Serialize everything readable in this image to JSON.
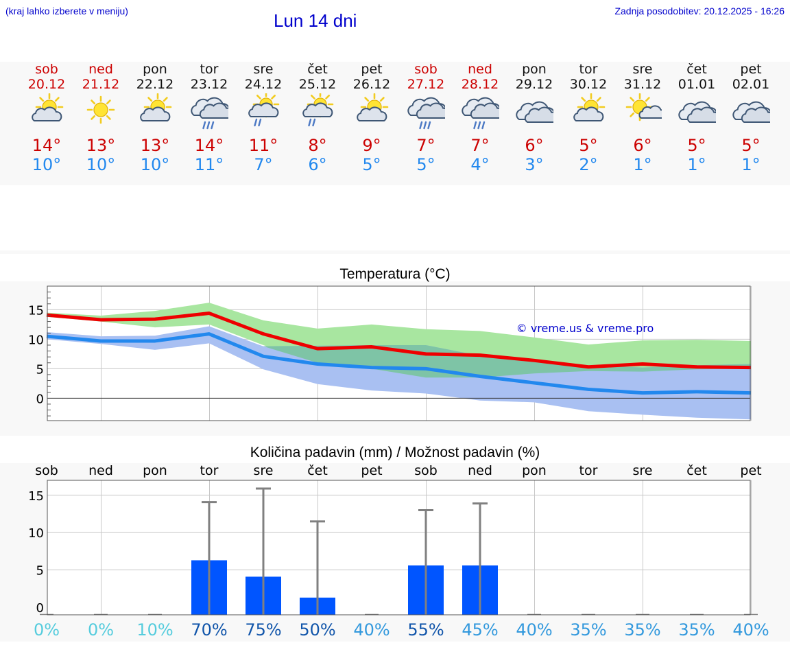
{
  "header": {
    "left_note": "(kraj lahko izberete v meniju)",
    "title": "Lun 14 dni",
    "updated": "Zadnja posodobitev: 20.12.2025 - 16:26"
  },
  "days": [
    {
      "name": "sob",
      "date": "20.12",
      "weekend": true,
      "icon": "sun-cloud",
      "max": "14°",
      "min": "10°"
    },
    {
      "name": "ned",
      "date": "21.12",
      "weekend": true,
      "icon": "sun",
      "max": "13°",
      "min": "10°"
    },
    {
      "name": "pon",
      "date": "22.12",
      "weekend": false,
      "icon": "sun-cloud",
      "max": "13°",
      "min": "10°"
    },
    {
      "name": "tor",
      "date": "23.12",
      "weekend": false,
      "icon": "cloud-rain",
      "max": "14°",
      "min": "11°"
    },
    {
      "name": "sre",
      "date": "24.12",
      "weekend": false,
      "icon": "sun-rain",
      "max": "11°",
      "min": "7°"
    },
    {
      "name": "čet",
      "date": "25.12",
      "weekend": false,
      "icon": "sun-rain",
      "max": "8°",
      "min": "6°"
    },
    {
      "name": "pet",
      "date": "26.12",
      "weekend": false,
      "icon": "sun-cloud",
      "max": "9°",
      "min": "5°"
    },
    {
      "name": "sob",
      "date": "27.12",
      "weekend": true,
      "icon": "cloud-rain",
      "max": "7°",
      "min": "5°"
    },
    {
      "name": "ned",
      "date": "28.12",
      "weekend": true,
      "icon": "cloud-rain",
      "max": "7°",
      "min": "4°"
    },
    {
      "name": "pon",
      "date": "29.12",
      "weekend": false,
      "icon": "cloud",
      "max": "6°",
      "min": "3°"
    },
    {
      "name": "tor",
      "date": "30.12",
      "weekend": false,
      "icon": "sun-cloud",
      "max": "5°",
      "min": "2°"
    },
    {
      "name": "sre",
      "date": "31.12",
      "weekend": false,
      "icon": "sun-small",
      "max": "6°",
      "min": "1°"
    },
    {
      "name": "čet",
      "date": "01.01",
      "weekend": false,
      "icon": "cloud",
      "max": "5°",
      "min": "1°"
    },
    {
      "name": "pet",
      "date": "02.01",
      "weekend": false,
      "icon": "cloud",
      "max": "5°",
      "min": "1°"
    }
  ],
  "colors": {
    "max_line": "#ee0000",
    "min_line": "#2288ee",
    "max_band": "#a8e6a0",
    "min_band": "#a9c0f2",
    "overlap_band": "#7ec4a6",
    "bar": "#0055ff",
    "whisker": "#808080",
    "grid": "#c8c8c8",
    "watermark": "#0000cc",
    "pct_low": "#55ccdd",
    "pct_mid": "#3399dd",
    "pct_high": "#1155aa"
  },
  "chart_data": [
    {
      "type": "line",
      "title": "Temperatura (°C)",
      "watermark": "© vreme.us & vreme.pro",
      "ylim": [
        -3.8,
        19
      ],
      "yticks": [
        0,
        5,
        10,
        15
      ],
      "max_line": [
        14.1,
        13.3,
        13.4,
        14.4,
        10.9,
        8.4,
        8.7,
        7.5,
        7.3,
        6.4,
        5.3,
        5.8,
        5.3,
        5.2
      ],
      "min_line": [
        10.5,
        9.7,
        9.7,
        10.9,
        7.1,
        5.8,
        5.2,
        5.0,
        3.7,
        2.6,
        1.5,
        0.9,
        1.1,
        0.9
      ],
      "max_band_upper": [
        14.5,
        14.0,
        14.8,
        16.2,
        13.2,
        11.8,
        12.5,
        11.7,
        11.4,
        10.3,
        9.1,
        9.8,
        9.9,
        9.7
      ],
      "max_band_lower": [
        13.8,
        13.0,
        12.0,
        12.5,
        9.0,
        6.0,
        5.0,
        3.5,
        3.5,
        4.2,
        4.6,
        4.5,
        4.9,
        5.0
      ],
      "min_band_upper": [
        11.2,
        10.5,
        10.6,
        12.2,
        8.8,
        8.9,
        9.0,
        9.0,
        7.2,
        6.3,
        5.6,
        5.2,
        5.6,
        5.8
      ],
      "min_band_lower": [
        10.0,
        9.2,
        8.2,
        9.3,
        4.9,
        2.4,
        1.3,
        0.8,
        -0.4,
        -0.7,
        -2.2,
        -2.8,
        -3.3,
        -3.6
      ]
    },
    {
      "type": "bar",
      "title": "Količina padavin (mm) / Možnost padavin (%)",
      "categories": [
        "sob",
        "ned",
        "pon",
        "tor",
        "sre",
        "čet",
        "pet",
        "sob",
        "ned",
        "pon",
        "tor",
        "sre",
        "čet",
        "pet"
      ],
      "ylim": [
        -1,
        17
      ],
      "yticks": [
        0,
        5,
        10,
        15
      ],
      "values": [
        0,
        0,
        0,
        6.3,
        4.1,
        1.3,
        0,
        5.6,
        5.6,
        0,
        0,
        0,
        0,
        0
      ],
      "max_range": [
        0,
        0,
        0,
        14.1,
        15.9,
        11.5,
        0,
        13.0,
        13.9,
        0,
        0,
        0,
        0,
        0
      ],
      "probability": [
        "0%",
        "0%",
        "10%",
        "70%",
        "75%",
        "50%",
        "40%",
        "55%",
        "45%",
        "40%",
        "35%",
        "35%",
        "35%",
        "40%"
      ]
    }
  ]
}
